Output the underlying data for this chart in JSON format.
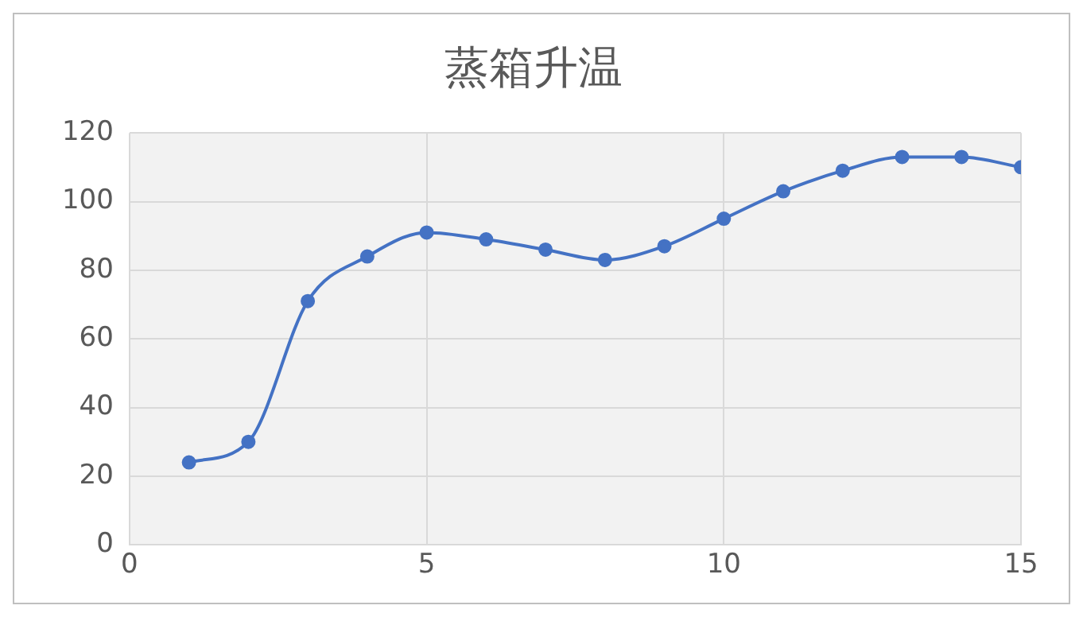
{
  "chart_data": {
    "type": "line",
    "title": "蒸箱升温",
    "x": [
      1,
      2,
      3,
      4,
      5,
      6,
      7,
      8,
      9,
      10,
      11,
      12,
      13,
      14,
      15
    ],
    "series": [
      {
        "color": "#4472c4",
        "values": [
          24,
          30,
          71,
          84,
          91,
          89,
          86,
          83,
          87,
          95,
          103,
          109,
          113,
          113,
          110
        ]
      }
    ],
    "xlim": [
      0,
      15
    ],
    "xticks": [
      0,
      5,
      10,
      15
    ],
    "ylim": [
      0,
      120
    ],
    "yticks": [
      0,
      20,
      40,
      60,
      80,
      100,
      120
    ],
    "grid": true,
    "legend": false,
    "marker": "circle",
    "line_style": "solid"
  }
}
